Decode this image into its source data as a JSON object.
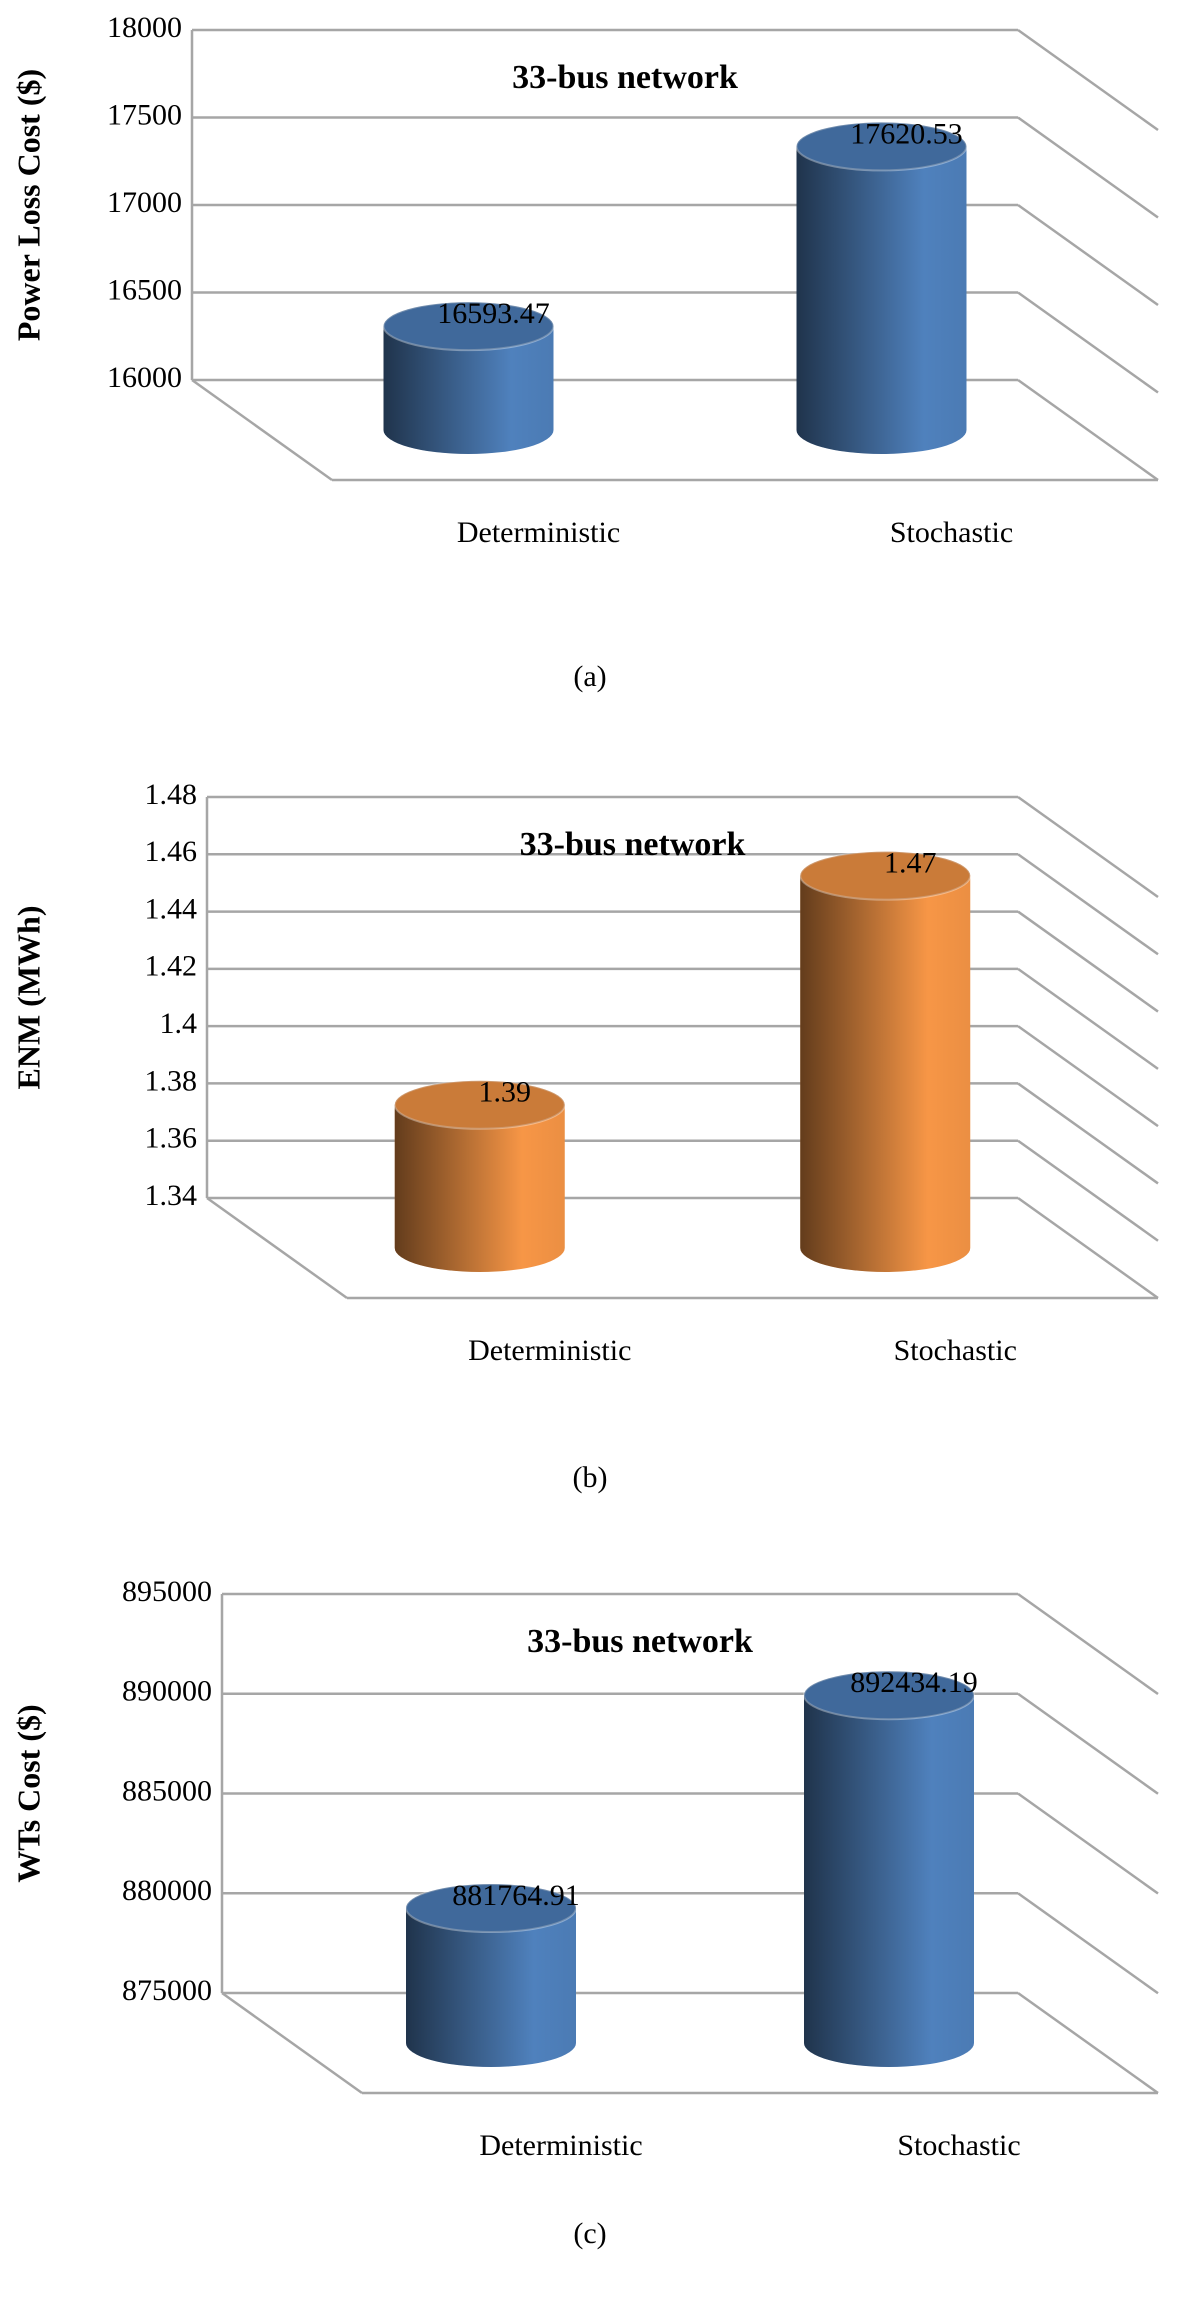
{
  "chart_data": [
    {
      "type": "bar",
      "title": "33-bus network",
      "y_label": "Power Loss Cost ($)",
      "caption": "(a)",
      "categories": [
        "Deterministic",
        "Stochastic"
      ],
      "values": [
        16593.47,
        17620.53
      ],
      "color": "#4f81bd",
      "ylim": [
        16000,
        18000
      ],
      "yticks": [
        16000,
        16500,
        17000,
        17500,
        18000
      ],
      "grid": true
    },
    {
      "type": "bar",
      "title": "33-bus network",
      "y_label": "ENM (MWh)",
      "caption": "(b)",
      "categories": [
        "Deterministic",
        "Stochastic"
      ],
      "values": [
        1.39,
        1.47
      ],
      "color": "#f79646",
      "ylim": [
        1.34,
        1.48
      ],
      "yticks": [
        1.34,
        1.36,
        1.38,
        1.4,
        1.42,
        1.44,
        1.46,
        1.48
      ],
      "grid": true
    },
    {
      "type": "bar",
      "title": "33-bus network",
      "y_label": "WTs Cost ($)",
      "caption": "(c)",
      "categories": [
        "Deterministic",
        "Stochastic"
      ],
      "values": [
        881764.91,
        892434.19
      ],
      "color": "#4f81bd",
      "ylim": [
        875000,
        895000
      ],
      "yticks": [
        875000,
        880000,
        885000,
        890000,
        895000
      ],
      "grid": true
    }
  ]
}
